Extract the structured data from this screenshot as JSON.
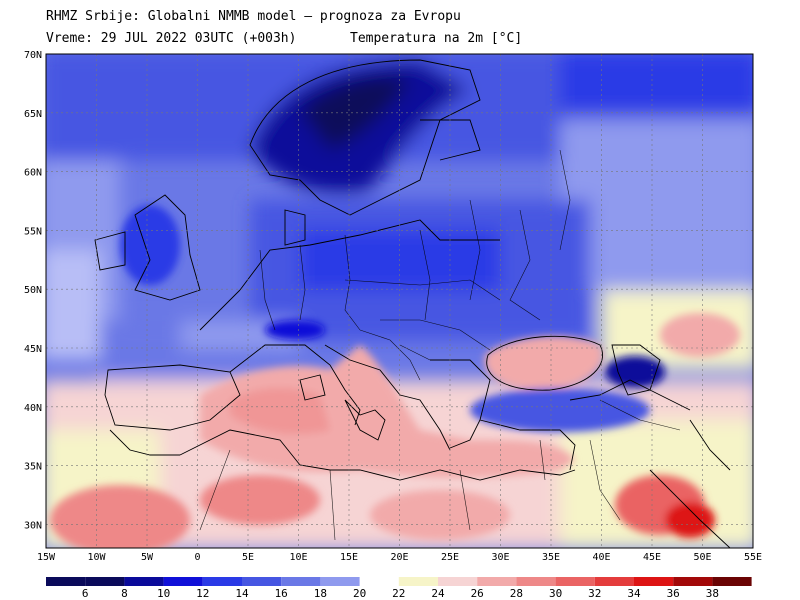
{
  "header": {
    "line1": "RHMZ Srbije: Globalni NMMB model — prognoza za Evropu",
    "line2_left": "Vreme: 29 JUL 2022 03UTC (+003h)",
    "line2_right": "Temperatura na 2m [°C]"
  },
  "map": {
    "lat_labels": [
      "70N",
      "65N",
      "60N",
      "55N",
      "50N",
      "45N",
      "40N",
      "35N",
      "30N"
    ],
    "lon_labels": [
      "15W",
      "10W",
      "5W",
      "0",
      "5E",
      "10E",
      "15E",
      "20E",
      "25E",
      "30E",
      "35E",
      "40E",
      "45E",
      "50E",
      "55E"
    ]
  },
  "colorbar": {
    "labels": [
      "6",
      "8",
      "10",
      "12",
      "14",
      "16",
      "18",
      "20",
      "22",
      "24",
      "26",
      "28",
      "30",
      "32",
      "34",
      "36",
      "38"
    ],
    "colors": [
      "#0a0a5a",
      "#0a0a9a",
      "#1010d8",
      "#2a3ae6",
      "#4656e2",
      "#6a78e6",
      "#8f9aee",
      "#b8bef6",
      "#f6f4c8",
      "#f6d4d4",
      "#f2aaaa",
      "#ee8888",
      "#ea6464",
      "#e43c3c",
      "#dd1414",
      "#a20808",
      "#6a0404"
    ]
  }
}
